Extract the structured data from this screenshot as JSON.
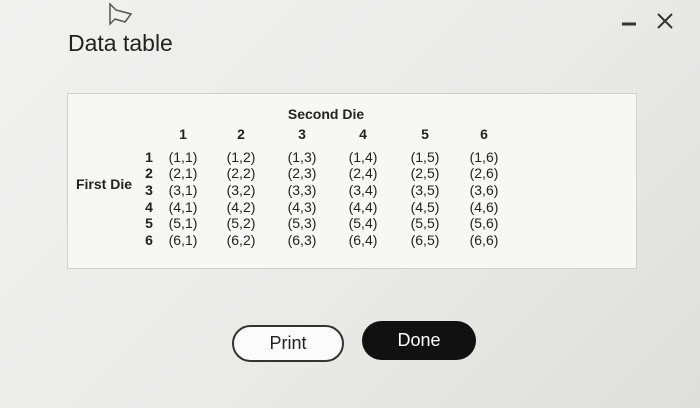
{
  "header": {
    "title": "Data table"
  },
  "table": {
    "caption": "Second Die",
    "row_label": "First Die",
    "columns": [
      "1",
      "2",
      "3",
      "4",
      "5",
      "6"
    ],
    "rows": [
      {
        "label": "1",
        "cells": [
          "(1,1)",
          "(1,2)",
          "(1,3)",
          "(1,4)",
          "(1,5)",
          "(1,6)"
        ]
      },
      {
        "label": "2",
        "cells": [
          "(2,1)",
          "(2,2)",
          "(2,3)",
          "(2,4)",
          "(2,5)",
          "(2,6)"
        ]
      },
      {
        "label": "3",
        "cells": [
          "(3,1)",
          "(3,2)",
          "(3,3)",
          "(3,4)",
          "(3,5)",
          "(3,6)"
        ]
      },
      {
        "label": "4",
        "cells": [
          "(4,1)",
          "(4,2)",
          "(4,3)",
          "(4,4)",
          "(4,5)",
          "(4,6)"
        ]
      },
      {
        "label": "5",
        "cells": [
          "(5,1)",
          "(5,2)",
          "(5,3)",
          "(5,4)",
          "(5,5)",
          "(5,6)"
        ]
      },
      {
        "label": "6",
        "cells": [
          "(6,1)",
          "(6,2)",
          "(6,3)",
          "(6,4)",
          "(6,5)",
          "(6,6)"
        ]
      }
    ]
  },
  "buttons": {
    "print": "Print",
    "done": "Done"
  }
}
